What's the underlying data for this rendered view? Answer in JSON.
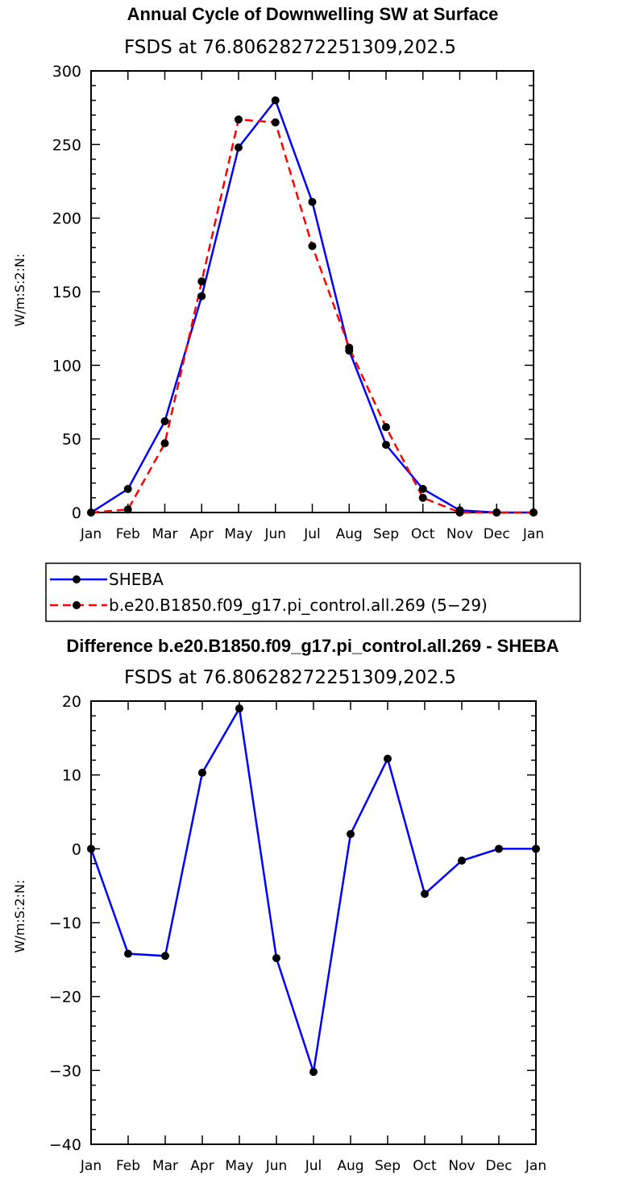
{
  "chart_data": [
    {
      "type": "line",
      "title": "Annual Cycle of Downwelling SW at Surface",
      "subtitle": "FSDS at 76.80628272251309,202.5",
      "ylabel": "W/m:S:2:N:",
      "xlabel": "",
      "categories": [
        "Jan",
        "Feb",
        "Mar",
        "Apr",
        "May",
        "Jun",
        "Jul",
        "Aug",
        "Sep",
        "Oct",
        "Nov",
        "Dec",
        "Jan"
      ],
      "ylim": [
        0,
        300
      ],
      "yticks": [
        0,
        50,
        100,
        150,
        200,
        250,
        300
      ],
      "series": [
        {
          "name": "SHEBA",
          "color": "#0000ff",
          "dash": "solid",
          "values": [
            0,
            16,
            62,
            147,
            248,
            280,
            211,
            110,
            46,
            16,
            1.5,
            0,
            0
          ]
        },
        {
          "name": "b.e20.B1850.f09_g17.pi_control.all.269 (5−29)",
          "color": "#ff0000",
          "dash": "dashed",
          "values": [
            0,
            2,
            47,
            157,
            267,
            265,
            181,
            112,
            58,
            10,
            0,
            0,
            0
          ]
        }
      ],
      "legend": "below"
    },
    {
      "type": "line",
      "title": "Difference b.e20.B1850.f09_g17.pi_control.all.269 - SHEBA",
      "subtitle": "FSDS at 76.80628272251309,202.5",
      "ylabel": "W/m:S:2:N:",
      "xlabel": "",
      "categories": [
        "Jan",
        "Feb",
        "Mar",
        "Apr",
        "May",
        "Jun",
        "Jul",
        "Aug",
        "Sep",
        "Oct",
        "Nov",
        "Dec",
        "Jan"
      ],
      "ylim": [
        -40,
        20
      ],
      "yticks": [
        -40,
        -30,
        -20,
        -10,
        0,
        10,
        20
      ],
      "series": [
        {
          "color": "#0000ff",
          "dash": "solid",
          "values": [
            0,
            -14.2,
            -14.5,
            10.3,
            19,
            -14.8,
            -30.2,
            2,
            12.2,
            -6.1,
            -1.6,
            0,
            0
          ]
        }
      ]
    }
  ]
}
